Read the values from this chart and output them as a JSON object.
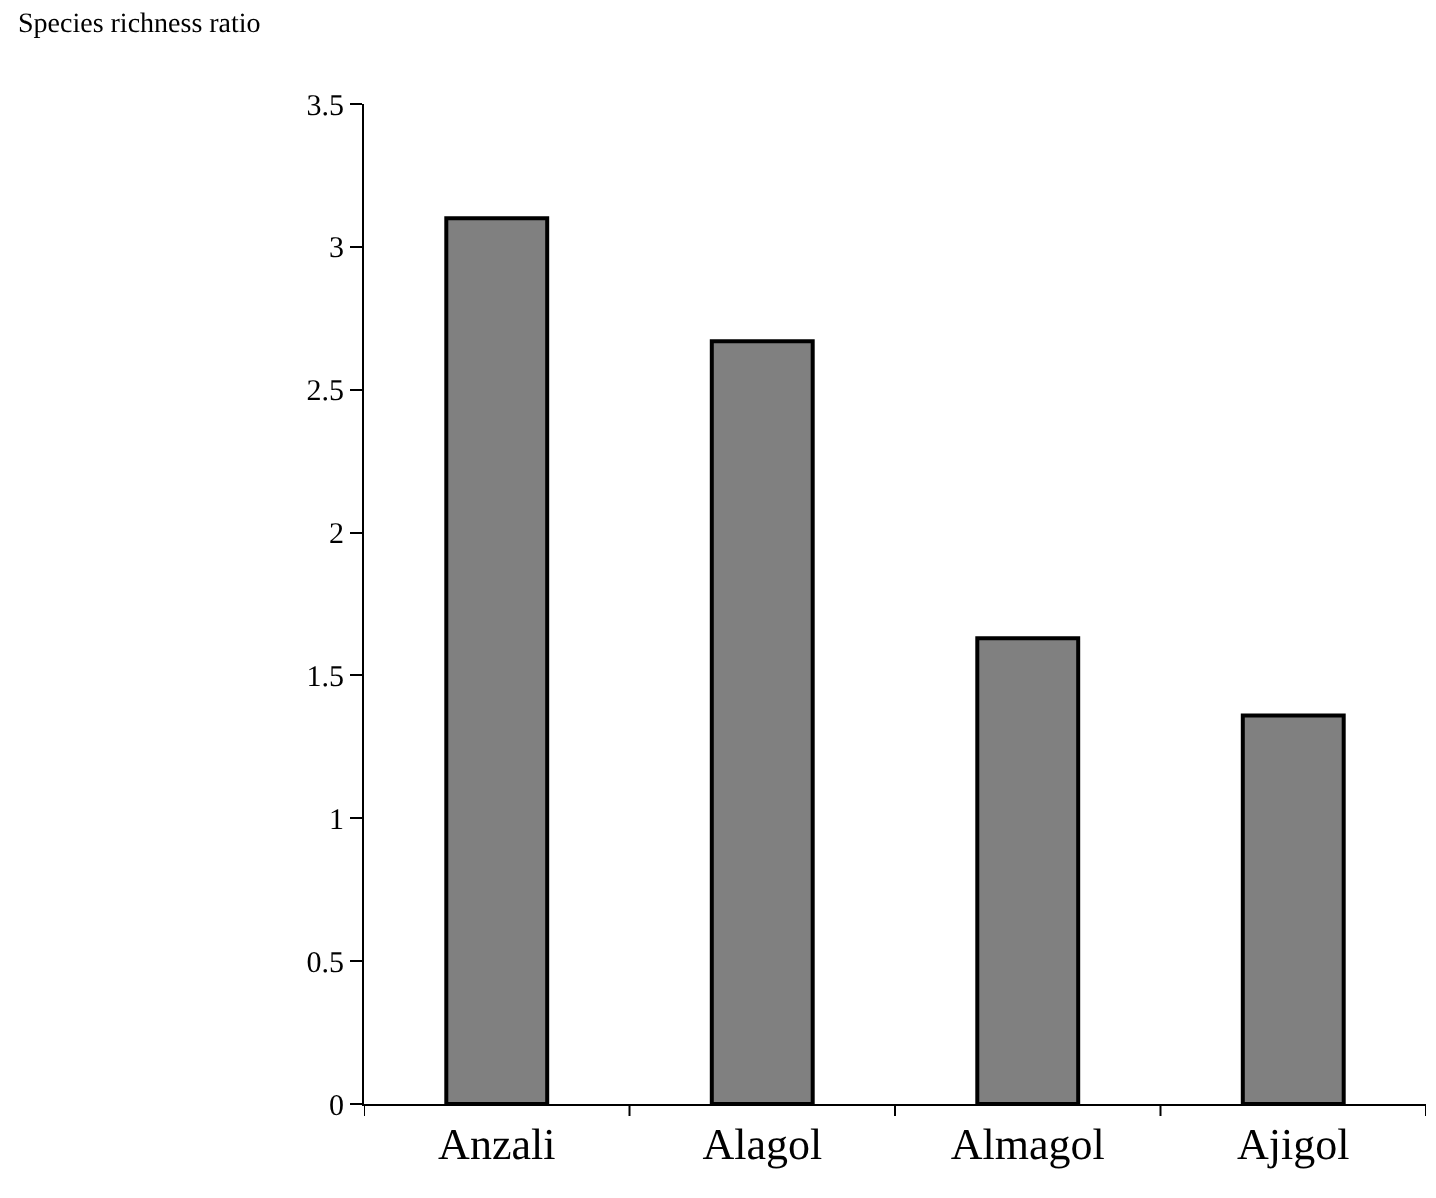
{
  "chart_data": {
    "type": "bar",
    "ylabel": "Species richness ratio",
    "categories": [
      "Anzali",
      "Alagol",
      "Almagol",
      "Ajigol"
    ],
    "values": [
      3.1,
      2.67,
      1.63,
      1.36
    ],
    "color": "#808080",
    "ylim": [
      0,
      3.5
    ],
    "yticks": [
      0,
      0.5,
      1,
      1.5,
      2,
      2.5,
      3,
      3.5
    ]
  }
}
